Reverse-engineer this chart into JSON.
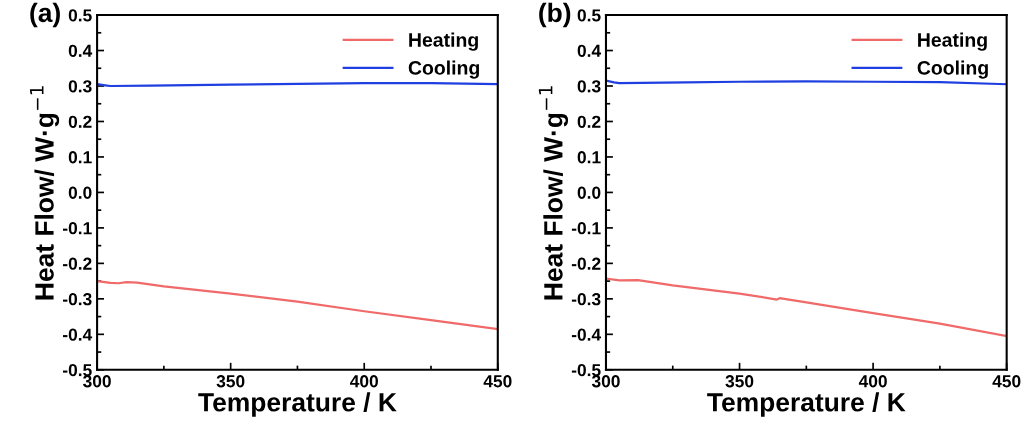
{
  "chart_data": [
    {
      "type": "line",
      "title": "(a)",
      "xlabel": "Temperature / K",
      "ylabel": "Heat Flow/ W·g$^{−1}$",
      "xlim": [
        300,
        450
      ],
      "xticks": [
        300,
        350,
        400,
        450
      ],
      "ylim": [
        -0.5,
        0.5
      ],
      "yticks": [
        {
          "value": -0.5,
          "label": "-0.5"
        },
        {
          "value": -0.4,
          "label": "-0.4"
        },
        {
          "value": -0.3,
          "label": "-0.3"
        },
        {
          "value": -0.2,
          "label": "-0.2"
        },
        {
          "value": -0.1,
          "label": "-0.1"
        },
        {
          "value": 0,
          "label": "0.0"
        },
        {
          "value": 0.1,
          "label": "0.1"
        },
        {
          "value": 0.2,
          "label": "0.2"
        },
        {
          "value": 0.3,
          "label": "0.3"
        },
        {
          "value": 0.4,
          "label": "0.4"
        },
        {
          "value": 0.5,
          "label": "0.5"
        }
      ],
      "legend": "top right",
      "grid": false,
      "series": [
        {
          "name": "Heating",
          "color": "#f06a6a",
          "x": [
            300,
            305,
            308,
            311,
            315,
            325,
            350,
            375,
            400,
            425,
            450
          ],
          "values": [
            -0.25,
            -0.255,
            -0.256,
            -0.253,
            -0.254,
            -0.265,
            -0.285,
            -0.308,
            -0.335,
            -0.36,
            -0.385
          ]
        },
        {
          "name": "Cooling",
          "color": "#1f3fe0",
          "x": [
            300,
            303,
            305,
            320,
            350,
            400,
            425,
            450
          ],
          "values": [
            0.305,
            0.302,
            0.3,
            0.301,
            0.304,
            0.308,
            0.308,
            0.305
          ]
        }
      ]
    },
    {
      "type": "line",
      "title": "(b)",
      "xlabel": "Temperature / K",
      "ylabel": "Heat Flow/ W·g$^{−1}$",
      "xlim": [
        300,
        450
      ],
      "xticks": [
        300,
        350,
        400,
        450
      ],
      "ylim": [
        -0.5,
        0.5
      ],
      "yticks": [
        {
          "value": -0.5,
          "label": "-0.5"
        },
        {
          "value": -0.4,
          "label": "-0.4"
        },
        {
          "value": -0.3,
          "label": "-0.3"
        },
        {
          "value": -0.2,
          "label": "-0.2"
        },
        {
          "value": -0.1,
          "label": "-0.1"
        },
        {
          "value": 0,
          "label": "0.0"
        },
        {
          "value": 0.1,
          "label": "0.1"
        },
        {
          "value": 0.2,
          "label": "0.2"
        },
        {
          "value": 0.3,
          "label": "0.3"
        },
        {
          "value": 0.4,
          "label": "0.4"
        },
        {
          "value": 0.5,
          "label": "0.5"
        }
      ],
      "legend": "top right",
      "grid": false,
      "series": [
        {
          "name": "Heating",
          "color": "#f06a6a",
          "x": [
            300,
            305,
            312,
            325,
            350,
            364,
            365,
            375,
            400,
            425,
            450
          ],
          "values": [
            -0.243,
            -0.248,
            -0.247,
            -0.262,
            -0.285,
            -0.302,
            -0.298,
            -0.31,
            -0.34,
            -0.37,
            -0.405
          ]
        },
        {
          "name": "Cooling",
          "color": "#1f3fe0",
          "x": [
            300,
            303,
            305,
            330,
            350,
            375,
            400,
            425,
            450
          ],
          "values": [
            0.315,
            0.31,
            0.308,
            0.31,
            0.312,
            0.313,
            0.312,
            0.311,
            0.305
          ]
        }
      ]
    }
  ]
}
